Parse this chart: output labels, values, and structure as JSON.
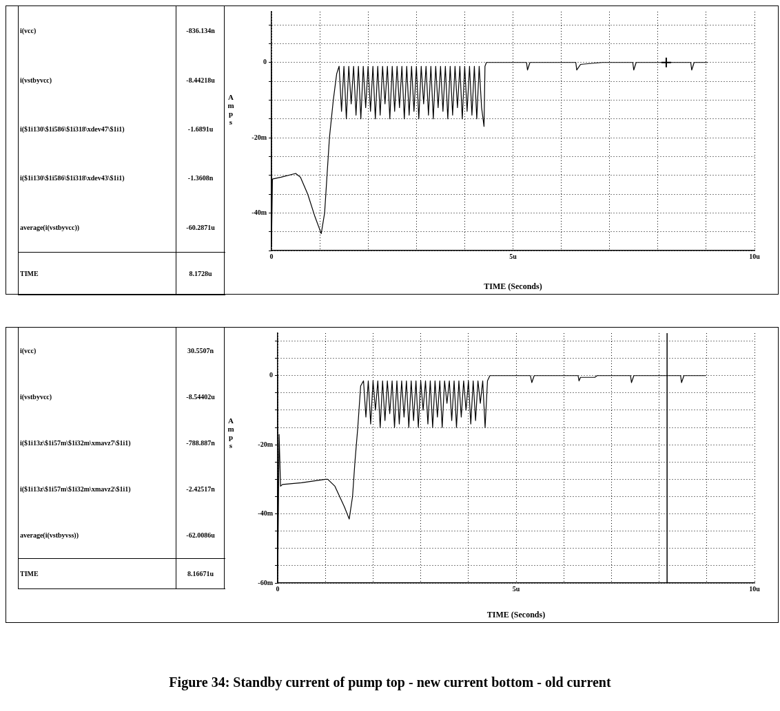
{
  "chart_data": [
    {
      "type": "line",
      "xlabel": "TIME (Seconds)",
      "ylabel": "Amps",
      "grid": true,
      "legend": false,
      "xlim": [
        0,
        10
      ],
      "ylim": [
        -50,
        13.5
      ],
      "xticks": [
        0,
        {
          "value": 1,
          "label": null
        },
        {
          "value": 2,
          "label": null
        },
        {
          "value": 3,
          "label": null
        },
        {
          "value": 4,
          "label": null
        },
        {
          "value": 5,
          "label": "5u"
        },
        {
          "value": 6,
          "label": null
        },
        {
          "value": 7,
          "label": null
        },
        {
          "value": 8,
          "label": null
        },
        {
          "value": 9,
          "label": null
        },
        {
          "value": 10,
          "label": "10u"
        }
      ],
      "yticks": [
        {
          "value": -50,
          "label": null
        },
        {
          "value": -45,
          "label": null
        },
        {
          "value": -40,
          "label": "-40m"
        },
        {
          "value": -35,
          "label": null
        },
        {
          "value": -30,
          "label": null
        },
        {
          "value": -25,
          "label": null
        },
        {
          "value": -20,
          "label": "-20m"
        },
        {
          "value": -15,
          "label": null
        },
        {
          "value": -10,
          "label": null
        },
        {
          "value": -5,
          "label": null
        },
        0,
        {
          "value": 5,
          "label": null
        },
        {
          "value": 10,
          "label": null
        }
      ],
      "series": [
        {
          "type": "line",
          "color": "#000000",
          "x": [
            0,
            0,
            0.02,
            0.2,
            0.5,
            0.6,
            0.75,
            0.9,
            1.03,
            1.1,
            1.15,
            1.2,
            1.28,
            1.35,
            1.4,
            1.45,
            1.5,
            1.55,
            1.6,
            1.65,
            1.7,
            1.75,
            1.8,
            1.85,
            1.9,
            1.95,
            2,
            2.05,
            2.1,
            2.15,
            2.2,
            2.25,
            2.3,
            2.35,
            2.4,
            2.45,
            2.5,
            2.55,
            2.6,
            2.65,
            2.7,
            2.75,
            2.8,
            2.85,
            2.9,
            2.95,
            3,
            3.05,
            3.1,
            3.15,
            3.2,
            3.25,
            3.3,
            3.35,
            3.4,
            3.45,
            3.5,
            3.55,
            3.6,
            3.65,
            3.7,
            3.75,
            3.8,
            3.85,
            3.9,
            3.95,
            4,
            4.05,
            4.1,
            4.15,
            4.2,
            4.25,
            4.3,
            4.35,
            4.4,
            4.42,
            4.45,
            5.28,
            5.3,
            5.35,
            6.3,
            6.32,
            6.4,
            6.85,
            7.48,
            7.5,
            7.55,
            8.68,
            8.7,
            8.75,
            9.03
          ],
          "values": [
            0,
            -49,
            -31,
            -30.5,
            -29.5,
            -30.5,
            -35,
            -41,
            -45.5,
            -40,
            -30,
            -20,
            -10,
            -3,
            -1,
            -13,
            -1,
            -15,
            -1,
            -11,
            -1,
            -14,
            -1,
            -15,
            -1,
            -12,
            -1,
            -13,
            -1,
            -15,
            -1,
            -14,
            -1,
            -11,
            -1,
            -15,
            -1,
            -13,
            -1,
            -12,
            -1,
            -15,
            -1,
            -14,
            -1,
            -13,
            -1,
            -15,
            -1,
            -11,
            -1,
            -14,
            -1,
            -15,
            -1,
            -12,
            -1,
            -13,
            -1,
            -15,
            -1,
            -14,
            -1,
            -12,
            -1,
            -15,
            -1,
            -13,
            -1,
            -14,
            -1,
            -15,
            -1,
            -12,
            -17,
            -1,
            0,
            0,
            -2,
            0,
            0,
            -2,
            -0.5,
            0,
            0,
            -2,
            0,
            0,
            -2,
            0,
            0
          ]
        },
        {
          "type": "scatter",
          "color": "#000000",
          "marker": "cross",
          "x": [
            8.1728
          ],
          "values": [
            0
          ]
        }
      ],
      "annotations": [
        "i(vcc)",
        "-836.134n",
        "i(vstbyvcc)",
        "-8.44218u",
        "i($1i130\\$1i586\\$1i318\\xdev47\\$1i1)",
        "-1.6891u",
        "i($1i130\\$1i586\\$1i318\\xdev43\\$1i1)",
        "-1.3608n",
        "average(i(vstbyvcc))",
        "-60.2871u",
        "TIME",
        "8.1728u"
      ]
    },
    {
      "type": "line",
      "xlabel": "TIME (Seconds)",
      "ylabel": "Amps",
      "grid": true,
      "legend": false,
      "xlim": [
        0,
        10
      ],
      "ylim": [
        -60,
        12.3
      ],
      "xticks": [
        0,
        {
          "value": 1,
          "label": null
        },
        {
          "value": 2,
          "label": null
        },
        {
          "value": 3,
          "label": null
        },
        {
          "value": 4,
          "label": null
        },
        {
          "value": 5,
          "label": "5u"
        },
        {
          "value": 6,
          "label": null
        },
        {
          "value": 7,
          "label": null
        },
        {
          "value": 8,
          "label": null
        },
        {
          "value": 9,
          "label": null
        },
        {
          "value": 10,
          "label": "10u"
        }
      ],
      "yticks": [
        {
          "value": -60,
          "label": "-60m"
        },
        {
          "value": -55,
          "label": null
        },
        {
          "value": -50,
          "label": null
        },
        {
          "value": -45,
          "label": null
        },
        {
          "value": -40,
          "label": "-40m"
        },
        {
          "value": -35,
          "label": null
        },
        {
          "value": -30,
          "label": null
        },
        {
          "value": -25,
          "label": null
        },
        {
          "value": -20,
          "label": "-20m"
        },
        {
          "value": -15,
          "label": null
        },
        {
          "value": -10,
          "label": null
        },
        {
          "value": -5,
          "label": null
        },
        0,
        {
          "value": 5,
          "label": null
        },
        {
          "value": 10,
          "label": null
        }
      ],
      "series": [
        {
          "type": "line",
          "color": "#000000",
          "x": [
            0,
            0,
            0.03,
            0.06,
            0.1,
            0.5,
            1,
            1.05,
            1.2,
            1.4,
            1.5,
            1.57,
            1.62,
            1.68,
            1.74,
            1.8,
            1.85,
            1.9,
            1.95,
            2,
            2.05,
            2.1,
            2.15,
            2.2,
            2.25,
            2.3,
            2.35,
            2.4,
            2.45,
            2.5,
            2.55,
            2.6,
            2.65,
            2.7,
            2.75,
            2.8,
            2.85,
            2.9,
            2.95,
            3,
            3.05,
            3.1,
            3.15,
            3.2,
            3.25,
            3.3,
            3.35,
            3.4,
            3.45,
            3.5,
            3.55,
            3.6,
            3.65,
            3.7,
            3.75,
            3.8,
            3.85,
            3.9,
            3.95,
            4,
            4.05,
            4.1,
            4.15,
            4.2,
            4.25,
            4.3,
            4.35,
            4.4,
            4.45,
            5.3,
            5.33,
            5.38,
            6.3,
            6.32,
            6.35,
            6.65,
            6.7,
            7.4,
            7.42,
            7.47,
            8.45,
            8.47,
            8.52,
            8.98
          ],
          "values": [
            0,
            -60,
            -17,
            -32,
            -31.5,
            -31,
            -30,
            -30,
            -32,
            -38,
            -41.5,
            -35,
            -25,
            -15,
            -3,
            -1.5,
            -12,
            -1.5,
            -14,
            -1.5,
            -10,
            -1.5,
            -15,
            -1.5,
            -13,
            -1.5,
            -11,
            -1.5,
            -15,
            -1.5,
            -14,
            -1.5,
            -12,
            -1.5,
            -15,
            -1.5,
            -13,
            -1.5,
            -15,
            -1.5,
            -10,
            -1.5,
            -14,
            -1.5,
            -15,
            -1.5,
            -12,
            -1.5,
            -15,
            -1.5,
            -8,
            -1.5,
            -13,
            -1.5,
            -15,
            -1.5,
            -12,
            -1.5,
            -10,
            -1.5,
            -14,
            -1.5,
            -13,
            -1.5,
            -8,
            -1.5,
            -15,
            -1.5,
            0,
            0,
            -2,
            0,
            0,
            -1.5,
            -0.5,
            -0.5,
            0,
            0,
            -2,
            0,
            0,
            -2,
            0,
            0
          ]
        }
      ],
      "ref_lines": [
        {
          "axis": "x",
          "value": 8.16671
        }
      ],
      "annotations": [
        "i(vcc)",
        "30.5507n",
        "i(vstbyvcc)",
        "-8.54402u",
        "i($1i13z\\$1i57m\\$1i32m\\xmavz7\\$1i1)",
        "-788.887n",
        "i($1i13z\\$1i57m\\$1i32m\\xmavz2\\$1i1)",
        "-2.42517n",
        "average(i(vstbyvss))",
        "-62.0086u",
        "TIME",
        "8.16671u",
        "Figure 34: Standby current of pump top - new current bottom - old current"
      ]
    }
  ]
}
